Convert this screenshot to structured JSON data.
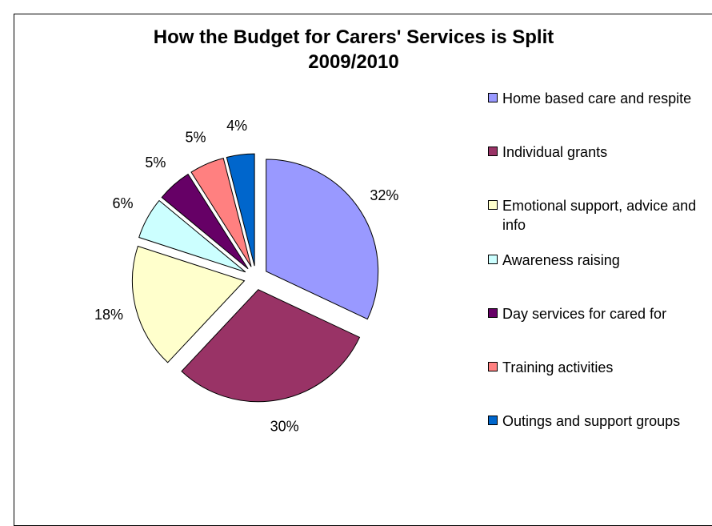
{
  "chart_data": {
    "type": "pie",
    "title": "How the Budget for Carers' Services is Split",
    "subtitle": "2009/2010",
    "exploded": true,
    "legend_position": "right",
    "slices": [
      {
        "label": "Home based care and respite",
        "value": 32,
        "display": "32%",
        "color": "#9999FF"
      },
      {
        "label": "Individual grants",
        "value": 30,
        "display": "30%",
        "color": "#993366"
      },
      {
        "label": "Emotional support, advice and info",
        "value": 18,
        "display": "18%",
        "color": "#FFFFCC"
      },
      {
        "label": "Awareness raising",
        "value": 6,
        "display": "6%",
        "color": "#CCFFFF"
      },
      {
        "label": "Day services for cared for",
        "value": 5,
        "display": "5%",
        "color": "#660066"
      },
      {
        "label": "Training activities",
        "value": 5,
        "display": "5%",
        "color": "#FF8080"
      },
      {
        "label": "Outings and support groups",
        "value": 4,
        "display": "4%",
        "color": "#0066CC"
      }
    ]
  }
}
